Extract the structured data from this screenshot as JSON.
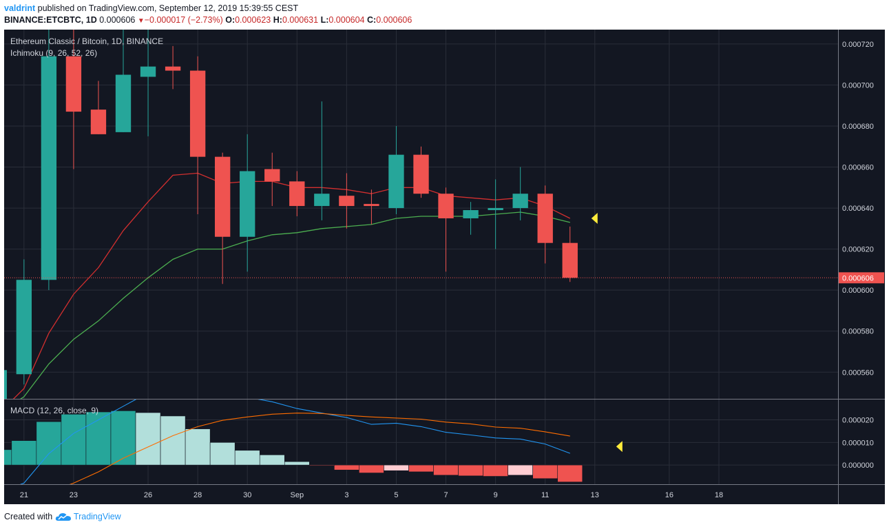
{
  "header": {
    "author": "valdrint",
    "published_text": "published on TradingView.com, September 12, 2019 15:39:55 CEST",
    "symbol": "BINANCE:ETCBTC, 1D",
    "price": "0.000606",
    "change": "−0.000017 (−2.73%)",
    "open_label": "O:",
    "open": "0.000623",
    "high_label": "H:",
    "high": "0.000631",
    "low_label": "L:",
    "low": "0.000604",
    "close_label": "C:",
    "close": "0.000606",
    "down_arrow_icon": "triangle-down-icon"
  },
  "footer": {
    "created_with": "Created with",
    "brand": "TradingView",
    "logo_icon": "tradingview-cloud-icon"
  },
  "colors": {
    "background": "#131722",
    "grid": "#2a2e39",
    "up": "#26a69a",
    "down": "#ef5350",
    "conversion_line": "#d32f2f",
    "base_line": "#4caf50",
    "macd_line": "#2196f3",
    "signal_line": "#ff6d00",
    "hist_up_strong": "#26a69a",
    "hist_up_weak": "#b2dfdb",
    "hist_down_strong": "#ef5350",
    "hist_down_weak": "#ffcdd2",
    "marker": "#ffeb3b"
  },
  "chart_data": {
    "type": "candlestick",
    "title": "Ethereum Classic / Bitcoin, 1D, BINANCE",
    "indicator_label": "Ichimoku (9, 26, 52, 26)",
    "macd_label": "MACD (12, 26, close, 9)",
    "price_axis": {
      "ylim": [
        0.000547,
        0.000727
      ],
      "ticks": [
        "0.000720",
        "0.000700",
        "0.000680",
        "0.000660",
        "0.000640",
        "0.000620",
        "0.000600",
        "0.000580",
        "0.000560"
      ],
      "last_price_label": "0.000606"
    },
    "macd_axis": {
      "ylim": [
        -8.5e-06,
        2.9e-05
      ],
      "ticks": [
        "0.000020",
        "0.000010",
        "0.000000"
      ]
    },
    "x_axis": {
      "range": [
        20.2,
        53.8
      ],
      "ticks": [
        {
          "label": "21",
          "x": 21
        },
        {
          "label": "23",
          "x": 23
        },
        {
          "label": "26",
          "x": 26
        },
        {
          "label": "28",
          "x": 28
        },
        {
          "label": "30",
          "x": 30
        },
        {
          "label": "Sep",
          "x": 32
        },
        {
          "label": "3",
          "x": 34
        },
        {
          "label": "5",
          "x": 36
        },
        {
          "label": "7",
          "x": 38
        },
        {
          "label": "9",
          "x": 40
        },
        {
          "label": "11",
          "x": 42
        },
        {
          "label": "13",
          "x": 44
        },
        {
          "label": "16",
          "x": 47
        },
        {
          "label": "18",
          "x": 49
        }
      ]
    },
    "candles": [
      {
        "x": 20,
        "open": 0.00053,
        "high": 0.00057,
        "low": 0.00052,
        "close": 0.000561
      },
      {
        "x": 21,
        "open": 0.000559,
        "high": 0.000615,
        "low": 0.000554,
        "close": 0.000605
      },
      {
        "x": 22,
        "open": 0.000605,
        "high": 0.00073,
        "low": 0.0006,
        "close": 0.000714
      },
      {
        "x": 23,
        "open": 0.000714,
        "high": 0.00073,
        "low": 0.000659,
        "close": 0.000687
      },
      {
        "x": 24,
        "open": 0.000688,
        "high": 0.000702,
        "low": 0.000676,
        "close": 0.000676
      },
      {
        "x": 25,
        "open": 0.000677,
        "high": 0.00073,
        "low": 0.000677,
        "close": 0.000705
      },
      {
        "x": 26,
        "open": 0.000704,
        "high": 0.00073,
        "low": 0.000675,
        "close": 0.000709
      },
      {
        "x": 27,
        "open": 0.000709,
        "high": 0.000719,
        "low": 0.000698,
        "close": 0.000707
      },
      {
        "x": 28,
        "open": 0.000707,
        "high": 0.000714,
        "low": 0.000637,
        "close": 0.000665
      },
      {
        "x": 29,
        "open": 0.000665,
        "high": 0.000667,
        "low": 0.000603,
        "close": 0.000626
      },
      {
        "x": 30,
        "open": 0.000626,
        "high": 0.000676,
        "low": 0.000609,
        "close": 0.000658
      },
      {
        "x": 31,
        "open": 0.000659,
        "high": 0.000667,
        "low": 0.000641,
        "close": 0.000653
      },
      {
        "x": 32,
        "open": 0.000653,
        "high": 0.000658,
        "low": 0.000636,
        "close": 0.000641
      },
      {
        "x": 33,
        "open": 0.000641,
        "high": 0.000692,
        "low": 0.000634,
        "close": 0.000647
      },
      {
        "x": 34,
        "open": 0.000646,
        "high": 0.000657,
        "low": 0.00063,
        "close": 0.000641
      },
      {
        "x": 35,
        "open": 0.000642,
        "high": 0.000649,
        "low": 0.000632,
        "close": 0.000641
      },
      {
        "x": 36,
        "open": 0.00064,
        "high": 0.00068,
        "low": 0.000637,
        "close": 0.000666
      },
      {
        "x": 37,
        "open": 0.000666,
        "high": 0.00067,
        "low": 0.000645,
        "close": 0.000647
      },
      {
        "x": 38,
        "open": 0.000647,
        "high": 0.00065,
        "low": 0.000609,
        "close": 0.000635
      },
      {
        "x": 39,
        "open": 0.000635,
        "high": 0.000643,
        "low": 0.000627,
        "close": 0.000639
      },
      {
        "x": 40,
        "open": 0.000639,
        "high": 0.000654,
        "low": 0.00062,
        "close": 0.00064
      },
      {
        "x": 41,
        "open": 0.00064,
        "high": 0.00066,
        "low": 0.000634,
        "close": 0.000647
      },
      {
        "x": 42,
        "open": 0.000647,
        "high": 0.000651,
        "low": 0.000613,
        "close": 0.000623
      },
      {
        "x": 43,
        "open": 0.000623,
        "high": 0.000631,
        "low": 0.000604,
        "close": 0.000606
      }
    ],
    "ichimoku": {
      "conversion_line": {
        "name": "Conversion Line",
        "points": [
          [
            20,
            0.00054
          ],
          [
            21,
            0.000552
          ],
          [
            22,
            0.000579
          ],
          [
            23,
            0.000598
          ],
          [
            24,
            0.000611
          ],
          [
            25,
            0.000629
          ],
          [
            26,
            0.000643
          ],
          [
            27,
            0.000656
          ],
          [
            28,
            0.000657
          ],
          [
            29,
            0.000652
          ],
          [
            30,
            0.000653
          ],
          [
            31,
            0.000653
          ],
          [
            32,
            0.00065
          ],
          [
            33,
            0.00065
          ],
          [
            34,
            0.000649
          ],
          [
            35,
            0.000647
          ],
          [
            36,
            0.00065
          ],
          [
            37,
            0.00065
          ],
          [
            38,
            0.000646
          ],
          [
            39,
            0.000645
          ],
          [
            40,
            0.000644
          ],
          [
            41,
            0.000645
          ],
          [
            42,
            0.000641
          ],
          [
            43,
            0.000635
          ]
        ]
      },
      "base_line": {
        "name": "Base Line",
        "points": [
          [
            20,
            0.00054
          ],
          [
            21,
            0.000548
          ],
          [
            22,
            0.000564
          ],
          [
            23,
            0.000576
          ],
          [
            24,
            0.000585
          ],
          [
            25,
            0.000596
          ],
          [
            26,
            0.000606
          ],
          [
            27,
            0.000615
          ],
          [
            28,
            0.00062
          ],
          [
            29,
            0.00062
          ],
          [
            30,
            0.000624
          ],
          [
            31,
            0.000627
          ],
          [
            32,
            0.000628
          ],
          [
            33,
            0.00063
          ],
          [
            34,
            0.000631
          ],
          [
            35,
            0.000632
          ],
          [
            36,
            0.000635
          ],
          [
            37,
            0.000636
          ],
          [
            38,
            0.000636
          ],
          [
            39,
            0.000636
          ],
          [
            40,
            0.000637
          ],
          [
            41,
            0.000638
          ],
          [
            42,
            0.000636
          ],
          [
            43,
            0.000633
          ]
        ]
      }
    },
    "macd": {
      "histogram": [
        {
          "x": 20,
          "value": 6.8e-06,
          "tone": "up_strong"
        },
        {
          "x": 21,
          "value": 1.08e-05,
          "tone": "up_strong"
        },
        {
          "x": 22,
          "value": 1.92e-05,
          "tone": "up_strong"
        },
        {
          "x": 23,
          "value": 2.25e-05,
          "tone": "up_strong"
        },
        {
          "x": 24,
          "value": 2.35e-05,
          "tone": "up_strong"
        },
        {
          "x": 25,
          "value": 2.4e-05,
          "tone": "up_strong"
        },
        {
          "x": 26,
          "value": 2.32e-05,
          "tone": "up_weak"
        },
        {
          "x": 27,
          "value": 2.17e-05,
          "tone": "up_weak"
        },
        {
          "x": 28,
          "value": 1.6e-05,
          "tone": "up_weak"
        },
        {
          "x": 29,
          "value": 1e-05,
          "tone": "up_weak"
        },
        {
          "x": 30,
          "value": 6.5e-06,
          "tone": "up_weak"
        },
        {
          "x": 31,
          "value": 4.5e-06,
          "tone": "up_weak"
        },
        {
          "x": 32,
          "value": 1.5e-06,
          "tone": "up_weak"
        },
        {
          "x": 33,
          "value": -3e-07,
          "tone": "down_strong"
        },
        {
          "x": 34,
          "value": -2.2e-06,
          "tone": "down_strong"
        },
        {
          "x": 35,
          "value": -3.5e-06,
          "tone": "down_strong"
        },
        {
          "x": 36,
          "value": -2.5e-06,
          "tone": "down_weak"
        },
        {
          "x": 37,
          "value": -3e-06,
          "tone": "down_strong"
        },
        {
          "x": 38,
          "value": -4.5e-06,
          "tone": "down_strong"
        },
        {
          "x": 39,
          "value": -4.8e-06,
          "tone": "down_strong"
        },
        {
          "x": 40,
          "value": -5e-06,
          "tone": "down_strong"
        },
        {
          "x": 41,
          "value": -4.5e-06,
          "tone": "down_weak"
        },
        {
          "x": 42,
          "value": -6e-06,
          "tone": "down_strong"
        },
        {
          "x": 43,
          "value": -7.5e-06,
          "tone": "down_strong"
        }
      ],
      "macd_line": {
        "name": "MACD",
        "points": [
          [
            20,
            -1.2e-05
          ],
          [
            21,
            -8e-06
          ],
          [
            22,
            5e-06
          ],
          [
            23,
            1.4e-05
          ],
          [
            24,
            2e-05
          ],
          [
            25,
            2.6e-05
          ],
          [
            26,
            3.2e-05
          ],
          [
            27,
            3.4e-05
          ],
          [
            28,
            3.4e-05
          ],
          [
            29,
            3.1e-05
          ],
          [
            30,
            3e-05
          ],
          [
            31,
            2.8e-05
          ],
          [
            32,
            2.5e-05
          ],
          [
            33,
            2.3e-05
          ],
          [
            34,
            2.1e-05
          ],
          [
            35,
            1.8e-05
          ],
          [
            36,
            1.85e-05
          ],
          [
            37,
            1.7e-05
          ],
          [
            38,
            1.45e-05
          ],
          [
            39,
            1.33e-05
          ],
          [
            40,
            1.2e-05
          ],
          [
            41,
            1.15e-05
          ],
          [
            42,
            9.3e-06
          ],
          [
            43,
            5.2e-06
          ]
        ]
      },
      "signal_line": {
        "name": "Signal",
        "points": [
          [
            22.5,
            -1e-05
          ],
          [
            23,
            -8e-06
          ],
          [
            24,
            -3e-06
          ],
          [
            25,
            3e-06
          ],
          [
            26,
            8e-06
          ],
          [
            27,
            1.3e-05
          ],
          [
            28,
            1.7e-05
          ],
          [
            29,
            1.98e-05
          ],
          [
            30,
            2.13e-05
          ],
          [
            31,
            2.25e-05
          ],
          [
            32,
            2.3e-05
          ],
          [
            33,
            2.28e-05
          ],
          [
            34,
            2.2e-05
          ],
          [
            35,
            2.13e-05
          ],
          [
            36,
            2.08e-05
          ],
          [
            37,
            2.03e-05
          ],
          [
            38,
            1.9e-05
          ],
          [
            39,
            1.82e-05
          ],
          [
            40,
            1.68e-05
          ],
          [
            41,
            1.63e-05
          ],
          [
            42,
            1.47e-05
          ],
          [
            43,
            1.28e-05
          ]
        ]
      }
    },
    "last_price": 0.000606,
    "markers": [
      {
        "pane": "price",
        "x": 44.0,
        "value": 0.000635,
        "shape": "left-triangle"
      },
      {
        "pane": "macd",
        "x": 45.0,
        "value": 8.2e-06,
        "shape": "left-triangle"
      }
    ]
  }
}
